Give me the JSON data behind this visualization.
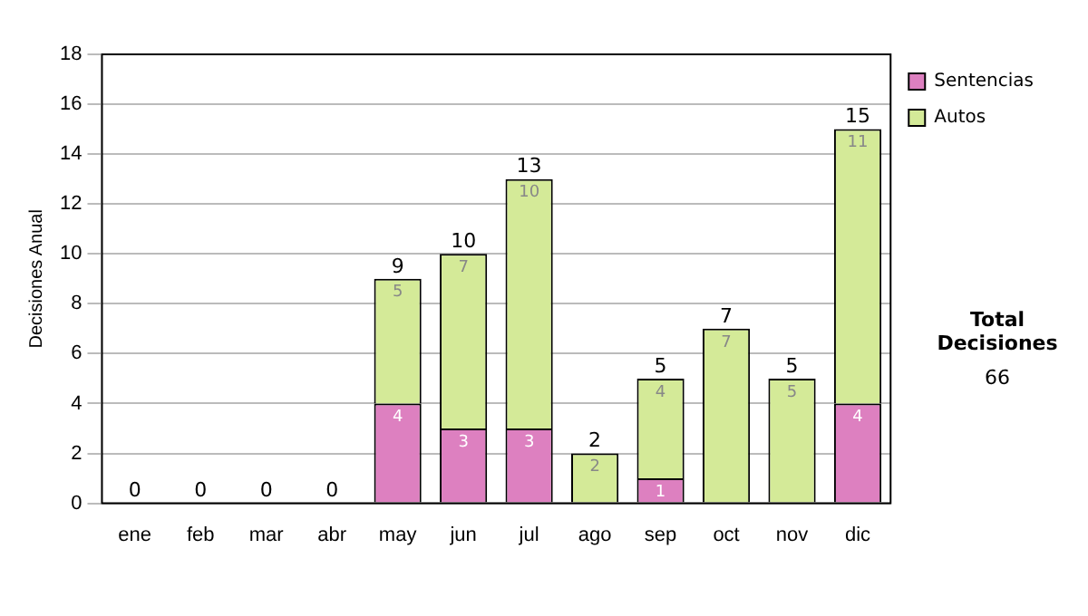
{
  "chart_data": {
    "type": "bar",
    "ylabel": "Decisiones Anual",
    "categories": [
      "ene",
      "feb",
      "mar",
      "abr",
      "may",
      "jun",
      "jul",
      "ago",
      "sep",
      "oct",
      "nov",
      "dic"
    ],
    "stacked": true,
    "ylim": [
      0,
      18
    ],
    "yticks": [
      0,
      2,
      4,
      6,
      8,
      10,
      12,
      14,
      16,
      18
    ],
    "grid": "y",
    "legend": "right",
    "series": [
      {
        "name": "Sentencias",
        "color": "#dd80c0",
        "values": [
          0,
          0,
          0,
          0,
          4,
          3,
          3,
          0,
          1,
          0,
          0,
          4
        ],
        "value_labels": [
          null,
          null,
          null,
          null,
          "4",
          "3",
          "3",
          null,
          "1",
          null,
          null,
          "4"
        ]
      },
      {
        "name": "Autos",
        "color": "#d4ea98",
        "values": [
          0,
          0,
          0,
          0,
          5,
          7,
          10,
          2,
          4,
          7,
          5,
          11
        ],
        "value_labels": [
          null,
          null,
          null,
          null,
          "5",
          "7",
          "10",
          "2",
          "4",
          "7",
          "5",
          "11"
        ]
      }
    ],
    "totals": [
      "0",
      "0",
      "0",
      "0",
      "9",
      "10",
      "13",
      "2",
      "5",
      "7",
      "5",
      "15"
    ],
    "annotations": [
      "Total Decisiones",
      "66"
    ]
  }
}
